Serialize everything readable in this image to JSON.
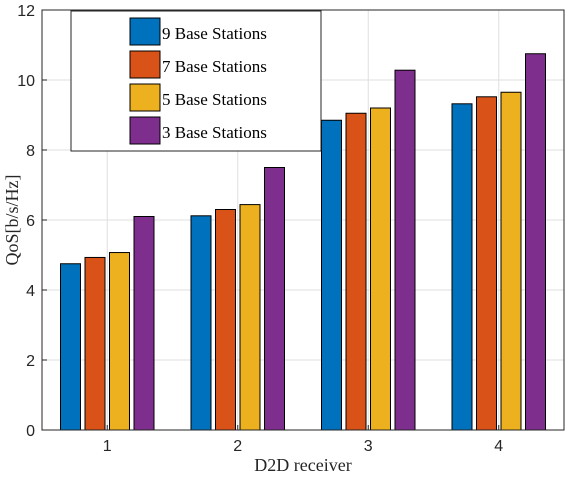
{
  "chart_data": {
    "type": "bar",
    "categories": [
      "1",
      "2",
      "3",
      "4"
    ],
    "series": [
      {
        "name": "9 Base Stations",
        "values": [
          4.75,
          6.12,
          8.85,
          9.32
        ],
        "color": "#0072bd"
      },
      {
        "name": "7 Base Stations",
        "values": [
          4.93,
          6.3,
          9.05,
          9.52
        ],
        "color": "#d95319"
      },
      {
        "name": "5 Base Stations",
        "values": [
          5.07,
          6.44,
          9.2,
          9.65
        ],
        "color": "#edb120"
      },
      {
        "name": "3 Base Stations",
        "values": [
          6.1,
          7.5,
          10.28,
          10.75
        ],
        "color": "#7e2f8e"
      }
    ],
    "xlabel": "D2D receiver",
    "ylabel": "QoS[b/s/Hz]",
    "ylim": [
      0,
      12
    ],
    "yticks": [
      "0",
      "2",
      "4",
      "6",
      "8",
      "10",
      "12"
    ],
    "grid": true,
    "legend_position": "top-left"
  }
}
